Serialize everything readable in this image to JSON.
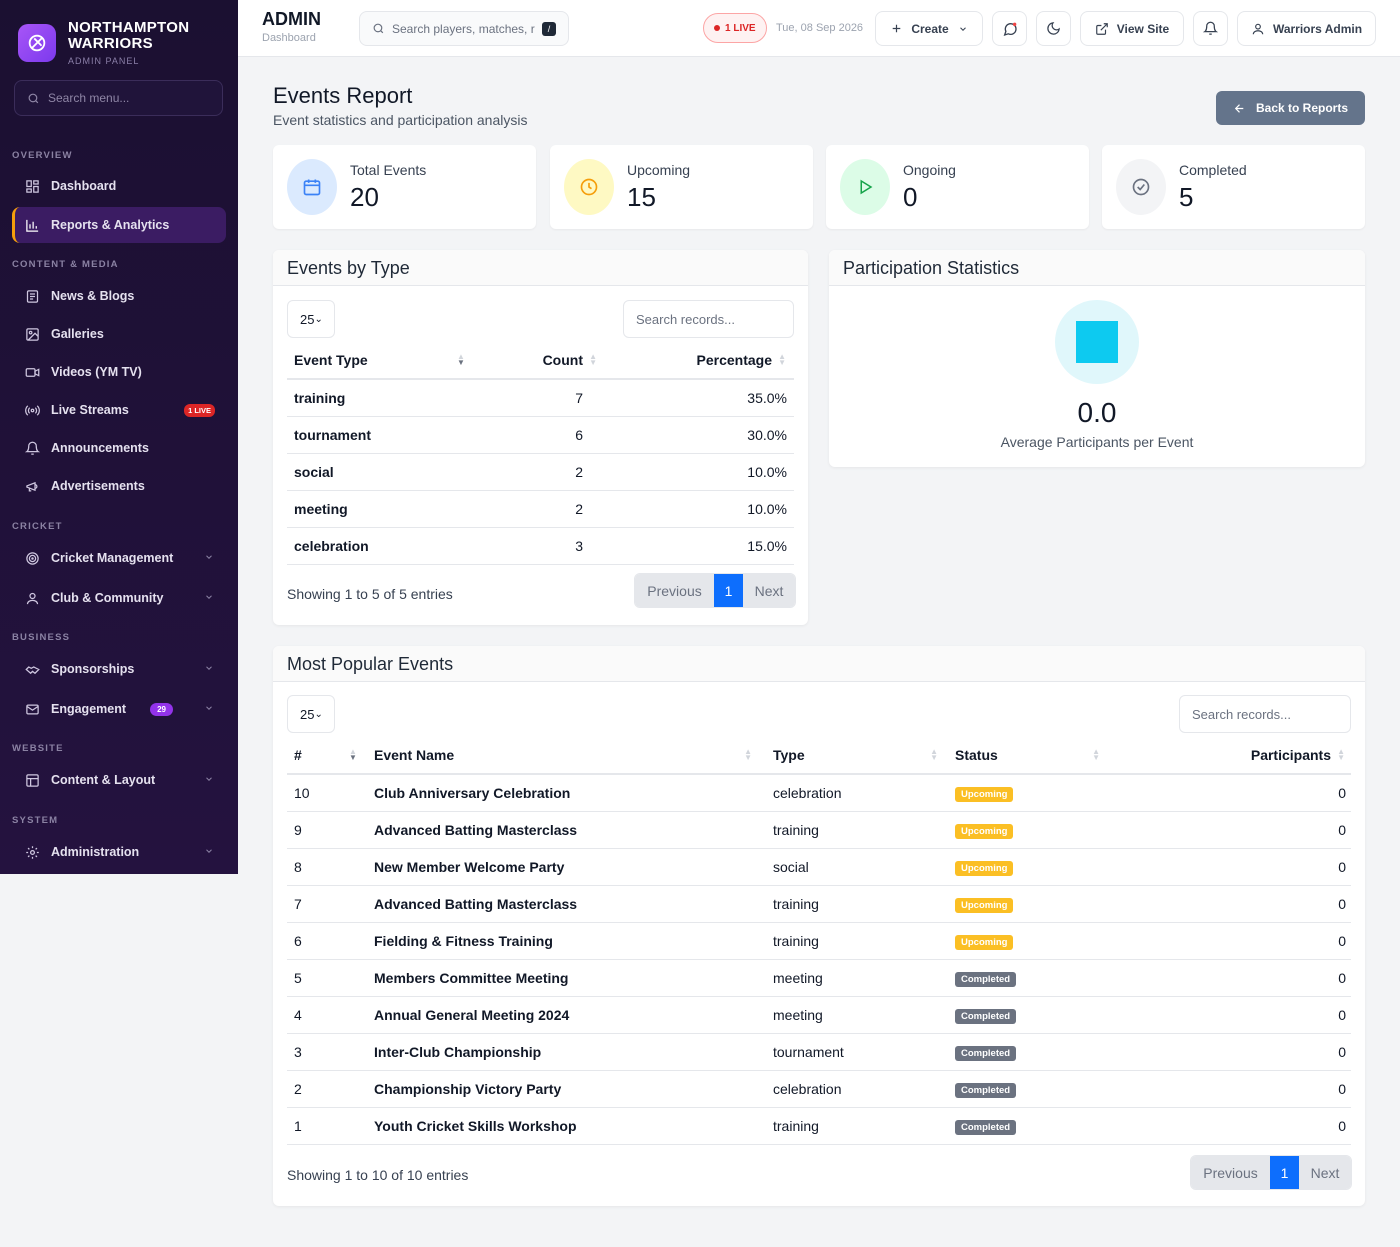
{
  "brand": {
    "name_line1": "NORTHAMPTON",
    "name_line2": "WARRIORS",
    "sub": "ADMIN PANEL"
  },
  "sidebar": {
    "search_placeholder": "Search menu...",
    "sections": {
      "overview": "OVERVIEW",
      "content": "CONTENT & MEDIA",
      "cricket": "CRICKET",
      "business": "BUSINESS",
      "website": "WEBSITE",
      "system": "SYSTEM"
    },
    "items": {
      "dashboard": "Dashboard",
      "reports": "Reports & Analytics",
      "news": "News & Blogs",
      "galleries": "Galleries",
      "videos": "Videos (YM TV)",
      "live": "Live Streams",
      "live_badge": "1 LIVE",
      "announcements": "Announcements",
      "ads": "Advertisements",
      "cricket_mgmt": "Cricket Management",
      "club": "Club & Community",
      "sponsorships": "Sponsorships",
      "engagement": "Engagement",
      "engagement_badge": "29",
      "content_layout": "Content & Layout",
      "admin": "Administration"
    }
  },
  "topbar": {
    "title": "ADMIN",
    "subtitle": "Dashboard",
    "search_placeholder": "Search players, matches, r",
    "search_key": "/",
    "live": "1 LIVE",
    "date": "Tue, 08 Sep 2026",
    "create": "Create",
    "view_site": "View Site",
    "user": "Warriors Admin"
  },
  "page": {
    "title": "Events Report",
    "subtitle": "Event statistics and participation analysis",
    "back": "Back to Reports"
  },
  "stats": [
    {
      "label": "Total Events",
      "value": "20",
      "color": "#3b82f6"
    },
    {
      "label": "Upcoming",
      "value": "15",
      "color": "#f59e0b"
    },
    {
      "label": "Ongoing",
      "value": "0",
      "color": "#16a34a"
    },
    {
      "label": "Completed",
      "value": "5",
      "color": "#6b7280"
    }
  ],
  "by_type": {
    "title": "Events by Type",
    "length": "25",
    "search_placeholder": "Search records...",
    "headers": [
      "Event Type",
      "Count",
      "Percentage"
    ],
    "rows": [
      [
        "training",
        "7",
        "35.0%"
      ],
      [
        "tournament",
        "6",
        "30.0%"
      ],
      [
        "social",
        "2",
        "10.0%"
      ],
      [
        "meeting",
        "2",
        "10.0%"
      ],
      [
        "celebration",
        "3",
        "15.0%"
      ]
    ],
    "info": "Showing 1 to 5 of 5 entries",
    "prev": "Previous",
    "page": "1",
    "next": "Next"
  },
  "participation": {
    "title": "Participation Statistics",
    "value": "0.0",
    "label": "Average Participants per Event",
    "accent": "#0dcaf0"
  },
  "popular": {
    "title": "Most Popular Events",
    "length": "25",
    "search_placeholder": "Search records...",
    "headers": [
      "#",
      "Event Name",
      "Type",
      "Status",
      "Participants"
    ],
    "rows": [
      [
        "10",
        "Club Anniversary Celebration",
        "celebration",
        "Upcoming",
        "0"
      ],
      [
        "9",
        "Advanced Batting Masterclass",
        "training",
        "Upcoming",
        "0"
      ],
      [
        "8",
        "New Member Welcome Party",
        "social",
        "Upcoming",
        "0"
      ],
      [
        "7",
        "Advanced Batting Masterclass",
        "training",
        "Upcoming",
        "0"
      ],
      [
        "6",
        "Fielding & Fitness Training",
        "training",
        "Upcoming",
        "0"
      ],
      [
        "5",
        "Members Committee Meeting",
        "meeting",
        "Completed",
        "0"
      ],
      [
        "4",
        "Annual General Meeting 2024",
        "meeting",
        "Completed",
        "0"
      ],
      [
        "3",
        "Inter-Club Championship",
        "tournament",
        "Completed",
        "0"
      ],
      [
        "2",
        "Championship Victory Party",
        "celebration",
        "Completed",
        "0"
      ],
      [
        "1",
        "Youth Cricket Skills Workshop",
        "training",
        "Completed",
        "0"
      ]
    ],
    "info": "Showing 1 to 10 of 10 entries",
    "prev": "Previous",
    "page": "1",
    "next": "Next"
  }
}
